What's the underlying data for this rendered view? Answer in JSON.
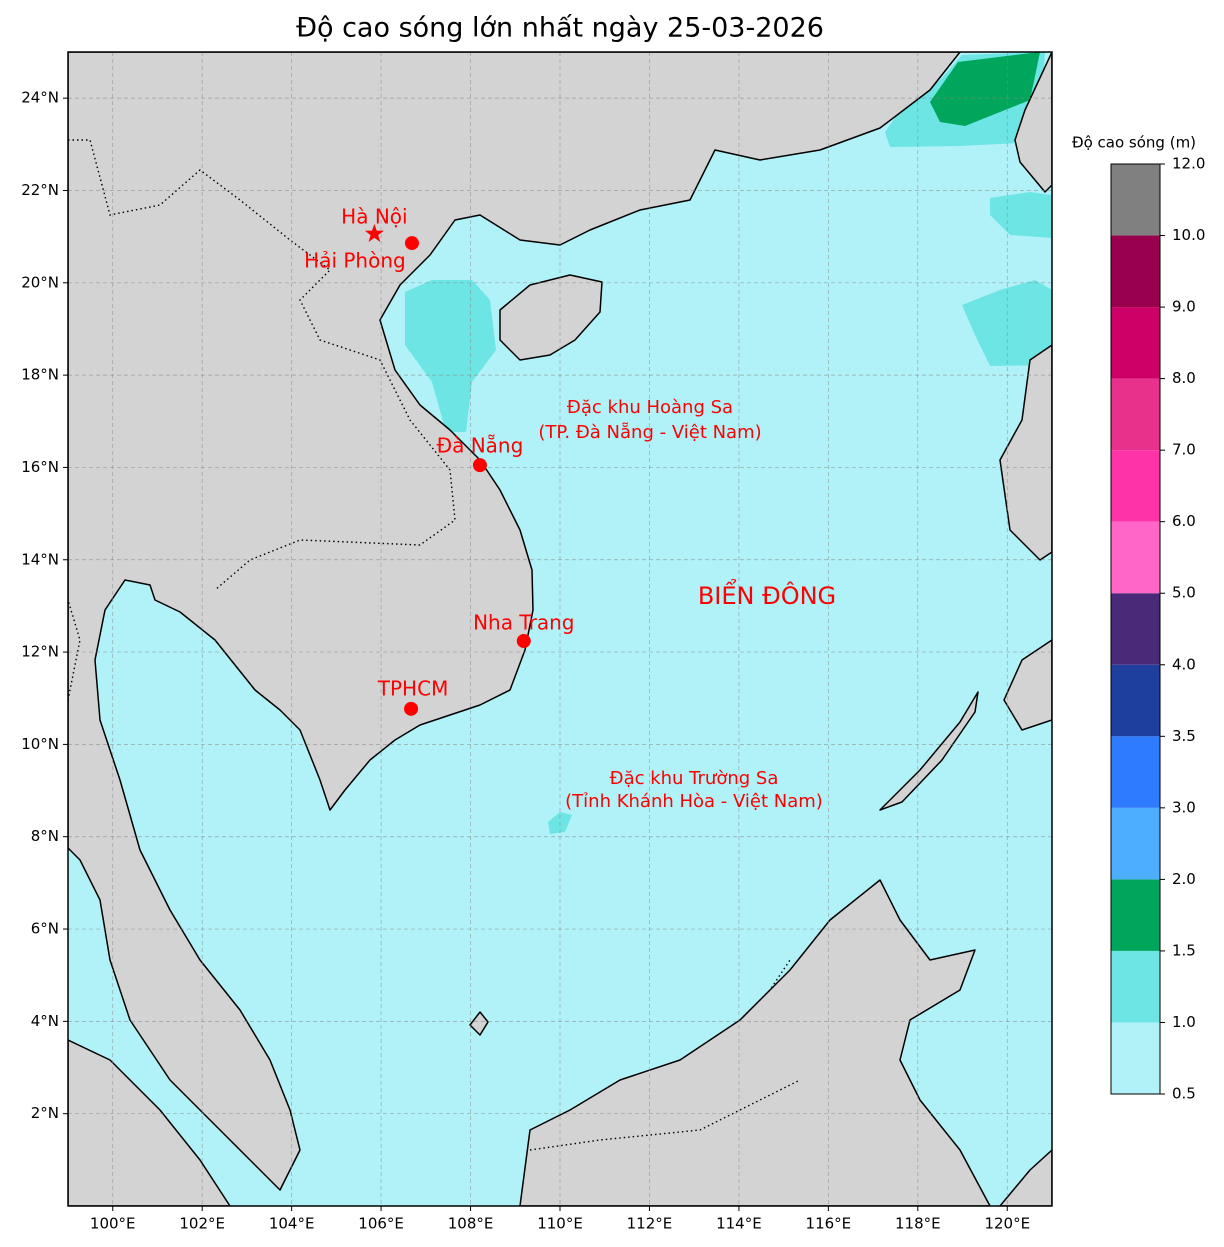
{
  "title": "Độ cao sóng lớn nhất ngày 25-03-2026",
  "map": {
    "xlim": [
      99,
      121
    ],
    "ylim": [
      0,
      25
    ],
    "grid": true,
    "xticks": [
      {
        "value": 100,
        "label": "100°E"
      },
      {
        "value": 102,
        "label": "102°E"
      },
      {
        "value": 104,
        "label": "104°E"
      },
      {
        "value": 106,
        "label": "106°E"
      },
      {
        "value": 108,
        "label": "108°E"
      },
      {
        "value": 110,
        "label": "110°E"
      },
      {
        "value": 112,
        "label": "112°E"
      },
      {
        "value": 114,
        "label": "114°E"
      },
      {
        "value": 116,
        "label": "116°E"
      },
      {
        "value": 118,
        "label": "118°E"
      },
      {
        "value": 120,
        "label": "120°E"
      }
    ],
    "yticks": [
      {
        "value": 2,
        "label": "2°N"
      },
      {
        "value": 4,
        "label": "4°N"
      },
      {
        "value": 6,
        "label": "6°N"
      },
      {
        "value": 8,
        "label": "8°N"
      },
      {
        "value": 10,
        "label": "10°N"
      },
      {
        "value": 12,
        "label": "12°N"
      },
      {
        "value": 14,
        "label": "14°N"
      },
      {
        "value": 16,
        "label": "16°N"
      },
      {
        "value": 18,
        "label": "18°N"
      },
      {
        "value": 20,
        "label": "20°N"
      },
      {
        "value": 22,
        "label": "22°N"
      },
      {
        "value": 24,
        "label": "24°N"
      }
    ]
  },
  "cities": [
    {
      "name": "Hà Nội",
      "lon": 105.85,
      "lat": 21.06,
      "marker": "star"
    },
    {
      "name": "Hải Phòng",
      "lon": 106.69,
      "lat": 20.86,
      "marker": "circle"
    },
    {
      "name": "Đà Nẵng",
      "lon": 108.21,
      "lat": 16.05,
      "marker": "circle"
    },
    {
      "name": "Nha Trang",
      "lon": 109.19,
      "lat": 12.24,
      "marker": "circle"
    },
    {
      "name": "TPHCM",
      "lon": 106.67,
      "lat": 10.77,
      "marker": "circle"
    }
  ],
  "annotations": [
    {
      "lines": [
        "Đặc khu Hoàng Sa",
        "(TP. Đà Nẵng - Việt Nam)"
      ]
    },
    {
      "lines": [
        "BIỂN ĐÔNG"
      ]
    },
    {
      "lines": [
        "Đặc khu Trường Sa",
        "(Tỉnh Khánh Hòa - Việt Nam)"
      ]
    }
  ],
  "colorbar": {
    "label": "Độ cao sóng (m)",
    "ticks": [
      {
        "value": 0.5,
        "label": "0.5"
      },
      {
        "value": 1,
        "label": "1.0"
      },
      {
        "value": 1.5,
        "label": "1.5"
      },
      {
        "value": 2,
        "label": "2.0"
      },
      {
        "value": 3,
        "label": "3.0"
      },
      {
        "value": 3.5,
        "label": "3.5"
      },
      {
        "value": 4,
        "label": "4.0"
      },
      {
        "value": 5,
        "label": "5.0"
      },
      {
        "value": 6,
        "label": "6.0"
      },
      {
        "value": 7,
        "label": "7.0"
      },
      {
        "value": 8,
        "label": "8.0"
      },
      {
        "value": 9,
        "label": "9.0"
      },
      {
        "value": 10,
        "label": "10.0"
      },
      {
        "value": 12,
        "label": "12.0"
      }
    ],
    "colors": [
      "#b0f2f8",
      "#6ce5e4",
      "#00a65c",
      "#4daeff",
      "#2e7bff",
      "#1e3f9e",
      "#4a2a78",
      "#ff66c8",
      "#ff33a8",
      "#e8318a",
      "#cc0066",
      "#99004d",
      "#808080"
    ]
  }
}
